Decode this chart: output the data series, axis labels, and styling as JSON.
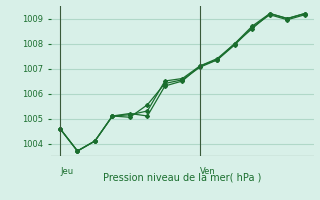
{
  "title": "Pression niveau de la mer( hPa )",
  "background_color": "#d8f0e8",
  "plot_bg_color": "#d8f0e8",
  "grid_color": "#b0d8c8",
  "line_color": "#1a6e2e",
  "ylim": [
    1003.5,
    1009.5
  ],
  "yticks": [
    1004,
    1005,
    1006,
    1007,
    1008,
    1009
  ],
  "day_labels": [
    "Jeu",
    "Ven"
  ],
  "day_positions": [
    0,
    8
  ],
  "series1": [
    1004.6,
    1003.7,
    1004.1,
    1005.1,
    1005.15,
    1005.3,
    1006.5,
    1006.6,
    1007.1,
    1007.4,
    1008.0,
    1008.7,
    1009.2,
    1009.0,
    1009.2
  ],
  "series2": [
    1004.6,
    1003.7,
    1004.1,
    1005.1,
    1005.05,
    1005.55,
    1006.4,
    1006.55,
    1007.05,
    1007.35,
    1007.95,
    1008.65,
    1009.15,
    1008.95,
    1009.15
  ],
  "series3": [
    1004.6,
    1003.7,
    1004.1,
    1005.1,
    1005.2,
    1005.1,
    1006.3,
    1006.5,
    1007.1,
    1007.35,
    1008.0,
    1008.6,
    1009.2,
    1009.0,
    1009.2
  ],
  "n_points": 15
}
